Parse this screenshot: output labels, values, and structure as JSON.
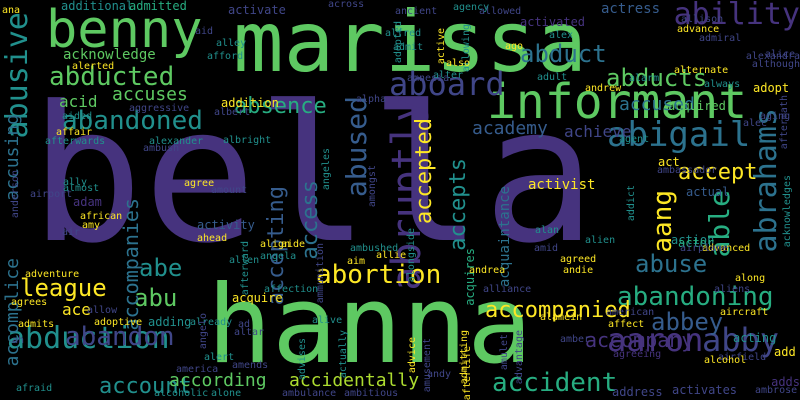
{
  "background": "#000000",
  "palette": {
    "dark_purple": "#46337e",
    "indigo": "#404688",
    "blue": "#365c8d",
    "steel_blue": "#2c728e",
    "teal": "#21908d",
    "sea_green": "#27ad81",
    "green": "#5ec962",
    "lime": "#addc30",
    "yellow": "#fde725"
  },
  "words": [
    {
      "text": "bella",
      "color": "#46337e",
      "weight": 100
    },
    {
      "text": "hanna",
      "color": "#5ec962",
      "weight": 72
    },
    {
      "text": "marissa",
      "color": "#5ec962",
      "weight": 62
    },
    {
      "text": "informant",
      "color": "#5ec962",
      "weight": 44
    },
    {
      "text": "benny",
      "color": "#5ec962",
      "weight": 38
    },
    {
      "text": "abruptly",
      "color": "#46337e",
      "weight": 34
    },
    {
      "text": "abigail",
      "color": "#2c728e",
      "weight": 30
    },
    {
      "text": "aaron",
      "color": "#46337e",
      "weight": 28
    },
    {
      "text": "aboard",
      "color": "#404688",
      "weight": 28
    },
    {
      "text": "abrahams",
      "color": "#2c728e",
      "weight": 28
    },
    {
      "text": "abby",
      "color": "#404688",
      "weight": 26
    },
    {
      "text": "abduction",
      "color": "#21908d",
      "weight": 26
    },
    {
      "text": "ability",
      "color": "#46337e",
      "weight": 26
    },
    {
      "text": "abusive",
      "color": "#21908d",
      "weight": 26
    },
    {
      "text": "abused",
      "color": "#365c8d",
      "weight": 24
    },
    {
      "text": "abandoned",
      "color": "#21908d",
      "weight": 24
    },
    {
      "text": "abducted",
      "color": "#5ec962",
      "weight": 24
    },
    {
      "text": "abortion",
      "color": "#fde725",
      "weight": 24
    },
    {
      "text": "abandoning",
      "color": "#27ad81",
      "weight": 24
    },
    {
      "text": "aang",
      "color": "#fde725",
      "weight": 24
    },
    {
      "text": "able",
      "color": "#27ad81",
      "weight": 24
    },
    {
      "text": "abandon",
      "color": "#404688",
      "weight": 24
    },
    {
      "text": "accident",
      "color": "#27ad81",
      "weight": 24
    },
    {
      "text": "abbey",
      "color": "#365c8d",
      "weight": 22
    },
    {
      "text": "abduct",
      "color": "#2c728e",
      "weight": 22
    },
    {
      "text": "abducts",
      "color": "#5ec962",
      "weight": 22
    },
    {
      "text": "abuse",
      "color": "#2c728e",
      "weight": 22
    },
    {
      "text": "abu",
      "color": "#5ec962",
      "weight": 22
    },
    {
      "text": "abe",
      "color": "#21908d",
      "weight": 22
    },
    {
      "text": "league",
      "color": "#fde725",
      "weight": 22
    },
    {
      "text": "absence",
      "color": "#27ad81",
      "weight": 20
    },
    {
      "text": "accepted",
      "color": "#fde725",
      "weight": 20
    },
    {
      "text": "accepts",
      "color": "#21908d",
      "weight": 20
    },
    {
      "text": "access",
      "color": "#2c728e",
      "weight": 20
    },
    {
      "text": "accepting",
      "color": "#365c8d",
      "weight": 20
    },
    {
      "text": "accept",
      "color": "#fde725",
      "weight": 20
    },
    {
      "text": "account",
      "color": "#21908d",
      "weight": 20
    },
    {
      "text": "accompanied",
      "color": "#fde725",
      "weight": 20
    },
    {
      "text": "accompany",
      "color": "#46337e",
      "weight": 20
    },
    {
      "text": "accompanies",
      "color": "#2c728e",
      "weight": 20
    },
    {
      "text": "accidentally",
      "color": "#addc30",
      "weight": 18
    },
    {
      "text": "according",
      "color": "#5ec962",
      "weight": 18
    },
    {
      "text": "accuses",
      "color": "#5ec962",
      "weight": 18
    },
    {
      "text": "accusing",
      "color": "#2c728e",
      "weight": 18
    },
    {
      "text": "accused",
      "color": "#2c728e",
      "weight": 18
    },
    {
      "text": "accomplice",
      "color": "#2c728e",
      "weight": 18
    },
    {
      "text": "academy",
      "color": "#365c8d",
      "weight": 18
    },
    {
      "text": "achieve",
      "color": "#404688",
      "weight": 16
    },
    {
      "text": "acid",
      "color": "#5ec962",
      "weight": 16
    },
    {
      "text": "ace",
      "color": "#fde725",
      "weight": 16
    },
    {
      "text": "actress",
      "color": "#365c8d",
      "weight": 14
    },
    {
      "text": "activist",
      "color": "#fde725",
      "weight": 14
    },
    {
      "text": "acknowledge",
      "color": "#5ec962",
      "weight": 14
    },
    {
      "text": "acquaintance",
      "color": "#2c728e",
      "weight": 14
    },
    {
      "text": "acquires",
      "color": "#27ad81",
      "weight": 12
    },
    {
      "text": "acquired",
      "color": "#5ec962",
      "weight": 12
    },
    {
      "text": "acquire",
      "color": "#fde725",
      "weight": 12
    },
    {
      "text": "action",
      "color": "#21908d",
      "weight": 12
    },
    {
      "text": "actor",
      "color": "#27ad81",
      "weight": 12
    },
    {
      "text": "act",
      "color": "#fde725",
      "weight": 12
    },
    {
      "text": "actual",
      "color": "#365c8d",
      "weight": 12
    },
    {
      "text": "acting",
      "color": "#21908d",
      "weight": 12
    },
    {
      "text": "activity",
      "color": "#365c8d",
      "weight": 12
    },
    {
      "text": "adam",
      "color": "#46337e",
      "weight": 12
    },
    {
      "text": "add",
      "color": "#fde725",
      "weight": 12
    },
    {
      "text": "adopt",
      "color": "#fde725",
      "weight": 12
    },
    {
      "text": "adds",
      "color": "#46337e",
      "weight": 12
    },
    {
      "text": "adding",
      "color": "#21908d",
      "weight": 12
    },
    {
      "text": "addition",
      "color": "#fde725",
      "weight": 12
    },
    {
      "text": "additional",
      "color": "#21908d",
      "weight": 12
    },
    {
      "text": "admitted",
      "color": "#27ad81",
      "weight": 12
    },
    {
      "text": "address",
      "color": "#404688",
      "weight": 12
    },
    {
      "text": "activates",
      "color": "#404688",
      "weight": 12
    },
    {
      "text": "activated",
      "color": "#46337e",
      "weight": 12
    },
    {
      "text": "activate",
      "color": "#404688",
      "weight": 12
    },
    {
      "text": "acknowledges",
      "color": "#21908d",
      "weight": 10
    },
    {
      "text": "admiral",
      "color": "#404688",
      "weight": 10
    },
    {
      "text": "admitting",
      "color": "#fde725",
      "weight": 10
    },
    {
      "text": "admits",
      "color": "#fde725",
      "weight": 10
    },
    {
      "text": "admit",
      "color": "#21908d",
      "weight": 10
    },
    {
      "text": "adoptive",
      "color": "#fde725",
      "weight": 10
    },
    {
      "text": "adopted",
      "color": "#21908d",
      "weight": 10
    },
    {
      "text": "adventure",
      "color": "#fde725",
      "weight": 10
    },
    {
      "text": "advance",
      "color": "#fde725",
      "weight": 10
    },
    {
      "text": "advanced",
      "color": "#fde725",
      "weight": 10
    },
    {
      "text": "advice",
      "color": "#fde725",
      "weight": 10
    },
    {
      "text": "advises",
      "color": "#21908d",
      "weight": 10
    },
    {
      "text": "affair",
      "color": "#fde725",
      "weight": 10
    },
    {
      "text": "affect",
      "color": "#fde725",
      "weight": 10
    },
    {
      "text": "affection",
      "color": "#21908d",
      "weight": 10
    },
    {
      "text": "afford",
      "color": "#21908d",
      "weight": 10
    },
    {
      "text": "afraid",
      "color": "#21908d",
      "weight": 10
    },
    {
      "text": "african",
      "color": "#fde725",
      "weight": 10
    },
    {
      "text": "afterlife",
      "color": "#fde725",
      "weight": 10
    },
    {
      "text": "afterwards",
      "color": "#21908d",
      "weight": 10
    },
    {
      "text": "afterward",
      "color": "#21908d",
      "weight": 10
    },
    {
      "text": "agrees",
      "color": "#fde725",
      "weight": 10
    },
    {
      "text": "agree",
      "color": "#fde725",
      "weight": 10
    },
    {
      "text": "agreed",
      "color": "#fde725",
      "weight": 10
    },
    {
      "text": "agreeing",
      "color": "#46337e",
      "weight": 10
    },
    {
      "text": "agent",
      "color": "#21908d",
      "weight": 10
    },
    {
      "text": "aide",
      "color": "#fde725",
      "weight": 10
    },
    {
      "text": "ahead",
      "color": "#fde725",
      "weight": 10
    },
    {
      "text": "aircraft",
      "color": "#fde725",
      "weight": 10
    },
    {
      "text": "airfield",
      "color": "#404688",
      "weight": 10
    },
    {
      "text": "airplane",
      "color": "#404688",
      "weight": 10
    },
    {
      "text": "albert",
      "color": "#404688",
      "weight": 10
    },
    {
      "text": "albright",
      "color": "#21908d",
      "weight": 10
    },
    {
      "text": "alcohol",
      "color": "#fde725",
      "weight": 10
    },
    {
      "text": "alcoholic",
      "color": "#21908d",
      "weight": 10
    },
    {
      "text": "alexander",
      "color": "#21908d",
      "weight": 10
    },
    {
      "text": "alex",
      "color": "#21908d",
      "weight": 10
    },
    {
      "text": "align",
      "color": "#fde725",
      "weight": 10
    },
    {
      "text": "alert",
      "color": "#21908d",
      "weight": 10
    },
    {
      "text": "alerted",
      "color": "#fde725",
      "weight": 10
    },
    {
      "text": "alive",
      "color": "#21908d",
      "weight": 10
    },
    {
      "text": "alley",
      "color": "#21908d",
      "weight": 10
    },
    {
      "text": "allen",
      "color": "#21908d",
      "weight": 10
    },
    {
      "text": "allison",
      "color": "#404688",
      "weight": 10
    },
    {
      "text": "allowed",
      "color": "#404688",
      "weight": 10
    },
    {
      "text": "allowing",
      "color": "#21908d",
      "weight": 10
    },
    {
      "text": "allie",
      "color": "#fde725",
      "weight": 10
    },
    {
      "text": "ally",
      "color": "#21908d",
      "weight": 10
    },
    {
      "text": "almost",
      "color": "#21908d",
      "weight": 10
    },
    {
      "text": "alone",
      "color": "#21908d",
      "weight": 10
    },
    {
      "text": "along",
      "color": "#fde725",
      "weight": 10
    },
    {
      "text": "alongside",
      "color": "#21908d",
      "weight": 10
    },
    {
      "text": "already",
      "color": "#21908d",
      "weight": 10
    },
    {
      "text": "also",
      "color": "#fde725",
      "weight": 10
    },
    {
      "text": "alter",
      "color": "#21908d",
      "weight": 10
    },
    {
      "text": "alternate",
      "color": "#fde725",
      "weight": 10
    },
    {
      "text": "although",
      "color": "#404688",
      "weight": 10
    },
    {
      "text": "altar",
      "color": "#404688",
      "weight": 10
    },
    {
      "text": "always",
      "color": "#21908d",
      "weight": 10
    },
    {
      "text": "amends",
      "color": "#404688",
      "weight": 10
    },
    {
      "text": "america",
      "color": "#404688",
      "weight": 10
    },
    {
      "text": "american",
      "color": "#404688",
      "weight": 10
    },
    {
      "text": "amid",
      "color": "#404688",
      "weight": 10
    },
    {
      "text": "amy",
      "color": "#fde725",
      "weight": 10
    },
    {
      "text": "amber",
      "color": "#404688",
      "weight": 10
    },
    {
      "text": "ambulance",
      "color": "#404688",
      "weight": 10
    },
    {
      "text": "ambitious",
      "color": "#404688",
      "weight": 10
    },
    {
      "text": "ambushed",
      "color": "#21908d",
      "weight": 10
    },
    {
      "text": "ambush",
      "color": "#404688",
      "weight": 10
    },
    {
      "text": "ambrose",
      "color": "#404688",
      "weight": 10
    },
    {
      "text": "ambassador",
      "color": "#404688",
      "weight": 10
    },
    {
      "text": "amnesia",
      "color": "#404688",
      "weight": 10
    },
    {
      "text": "amulet",
      "color": "#404688",
      "weight": 10
    },
    {
      "text": "amusement",
      "color": "#404688",
      "weight": 10
    },
    {
      "text": "ammunition",
      "color": "#404688",
      "weight": 10
    },
    {
      "text": "amongst",
      "color": "#404688",
      "weight": 10
    },
    {
      "text": "amount",
      "color": "#404688",
      "weight": 10
    },
    {
      "text": "alamein",
      "color": "#fde725",
      "weight": 10
    },
    {
      "text": "alan",
      "color": "#21908d",
      "weight": 10
    },
    {
      "text": "alarm",
      "color": "#21908d",
      "weight": 10
    },
    {
      "text": "alfred",
      "color": "#21908d",
      "weight": 10
    },
    {
      "text": "alien",
      "color": "#21908d",
      "weight": 10
    },
    {
      "text": "alice",
      "color": "#404688",
      "weight": 10
    },
    {
      "text": "alliance",
      "color": "#404688",
      "weight": 10
    },
    {
      "text": "allow",
      "color": "#404688",
      "weight": 10
    },
    {
      "text": "aliens",
      "color": "#404688",
      "weight": 10
    },
    {
      "text": "alpha",
      "color": "#404688",
      "weight": 10
    },
    {
      "text": "alec",
      "color": "#404688",
      "weight": 10
    },
    {
      "text": "adult",
      "color": "#21908d",
      "weight": 10
    },
    {
      "text": "addict",
      "color": "#21908d",
      "weight": 10
    },
    {
      "text": "aftermath",
      "color": "#404688",
      "weight": 10
    },
    {
      "text": "agency",
      "color": "#21908d",
      "weight": 10
    },
    {
      "text": "ago",
      "color": "#fde725",
      "weight": 10
    },
    {
      "text": "aging",
      "color": "#404688",
      "weight": 10
    },
    {
      "text": "aggressive",
      "color": "#404688",
      "weight": 10
    },
    {
      "text": "aim",
      "color": "#fde725",
      "weight": 10
    },
    {
      "text": "aid",
      "color": "#404688",
      "weight": 10
    },
    {
      "text": "aided",
      "color": "#21908d",
      "weight": 10
    },
    {
      "text": "air",
      "color": "#404688",
      "weight": 10
    },
    {
      "text": "airport",
      "color": "#404688",
      "weight": 10
    },
    {
      "text": "across",
      "color": "#404688",
      "weight": 10
    },
    {
      "text": "active",
      "color": "#fde725",
      "weight": 10
    },
    {
      "text": "actually",
      "color": "#21908d",
      "weight": 10
    },
    {
      "text": "ad",
      "color": "#404688",
      "weight": 10
    },
    {
      "text": "ah",
      "color": "#404688",
      "weight": 10
    },
    {
      "text": "ana",
      "color": "#fde725",
      "weight": 10
    },
    {
      "text": "anderson",
      "color": "#404688",
      "weight": 10
    },
    {
      "text": "andie",
      "color": "#fde725",
      "weight": 10
    },
    {
      "text": "andrea",
      "color": "#fde725",
      "weight": 10
    },
    {
      "text": "andrew",
      "color": "#fde725",
      "weight": 10
    },
    {
      "text": "andy",
      "color": "#404688",
      "weight": 10
    },
    {
      "text": "angela",
      "color": "#21908d",
      "weight": 10
    },
    {
      "text": "angelo",
      "color": "#404688",
      "weight": 10
    },
    {
      "text": "angeles",
      "color": "#21908d",
      "weight": 10
    },
    {
      "text": "ancient",
      "color": "#404688",
      "weight": 10
    },
    {
      "text": "advantage",
      "color": "#404688",
      "weight": 10
    },
    {
      "text": "alexandra",
      "color": "#404688",
      "weight": 10
    }
  ]
}
